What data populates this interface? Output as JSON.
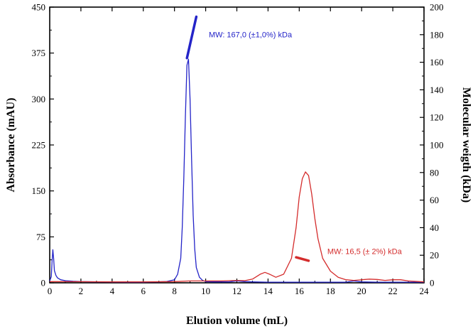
{
  "chart_data": {
    "type": "line",
    "xlabel": "Elution volume (mL)",
    "ylabel": "Absorbance (mAU)",
    "y2label": "Molecular weigth (kDa)",
    "xlim": [
      0,
      24
    ],
    "ylim": [
      0,
      450
    ],
    "y2lim": [
      0,
      200
    ],
    "x_ticks": [
      0,
      2,
      4,
      6,
      8,
      10,
      12,
      14,
      16,
      18,
      20,
      22,
      24
    ],
    "y_ticks": [
      0,
      75,
      150,
      225,
      300,
      375,
      450
    ],
    "y2_ticks": [
      0,
      20,
      40,
      60,
      80,
      100,
      120,
      140,
      160,
      180,
      200
    ],
    "grid": false,
    "colors": {
      "blue": "#2424c8",
      "red": "#d42c2c"
    },
    "series": [
      {
        "color": "#2424c8",
        "axis": "left",
        "x": [
          0,
          0.1,
          0.15,
          0.2,
          0.25,
          0.3,
          0.4,
          0.5,
          0.7,
          1.0,
          1.5,
          2.0,
          3.0,
          4.0,
          5.0,
          6.0,
          7.0,
          7.5,
          8.0,
          8.2,
          8.4,
          8.5,
          8.6,
          8.7,
          8.8,
          8.9,
          9.0,
          9.1,
          9.2,
          9.3,
          9.4,
          9.6,
          9.8,
          10.0,
          10.5,
          11.0,
          11.5,
          12.0,
          12.5,
          13.0,
          14.0,
          15.0,
          16.0,
          17.0,
          18.0,
          19.0,
          19.5,
          20.0,
          21.0,
          22.0,
          23.0,
          24.0
        ],
        "y": [
          3,
          10,
          35,
          54,
          40,
          20,
          12,
          8,
          5,
          3.5,
          2.5,
          2,
          1.5,
          1.2,
          1.1,
          1.1,
          1.5,
          2.2,
          5,
          14,
          40,
          90,
          170,
          270,
          355,
          365,
          300,
          200,
          110,
          55,
          25,
          9,
          4,
          2,
          1.5,
          1.5,
          1.5,
          3,
          2,
          1.5,
          1,
          1,
          1,
          1,
          1,
          1,
          3,
          1.5,
          1,
          1,
          1,
          1
        ]
      },
      {
        "color": "#d42c2c",
        "axis": "left",
        "x": [
          0,
          2,
          4,
          6,
          8,
          9,
          10,
          11,
          12,
          12.5,
          13,
          13.5,
          13.8,
          14.1,
          14.5,
          15.0,
          15.5,
          15.8,
          16.0,
          16.2,
          16.4,
          16.6,
          16.8,
          17.0,
          17.2,
          17.5,
          18.0,
          18.5,
          19.0,
          19.5,
          20.0,
          20.5,
          21.0,
          21.5,
          22.0,
          22.5,
          23.0,
          24.0
        ],
        "y": [
          2,
          1.8,
          1.5,
          1.5,
          2,
          3,
          3,
          3,
          4,
          3.5,
          6,
          14,
          17,
          14,
          9,
          14,
          40,
          90,
          140,
          170,
          181,
          175,
          145,
          105,
          72,
          40,
          19,
          9,
          5,
          4,
          5,
          6,
          5.5,
          4,
          5,
          5,
          3,
          1.5
        ]
      }
    ],
    "mw_fits": [
      {
        "color": "#2424c8",
        "x": [
          8.8,
          9.4
        ],
        "y2": [
          163,
          193
        ]
      },
      {
        "color": "#d42c2c",
        "x": [
          15.8,
          16.6
        ],
        "y2": [
          18.5,
          16.0
        ]
      }
    ],
    "annotations": [
      {
        "text": "MW: 167,0 (±1,0%) kDa",
        "color": "#2424c8",
        "x": 10.2,
        "y2": 178
      },
      {
        "text": "MW: 16,5 (± 2%) kDa",
        "color": "#d42c2c",
        "x": 17.8,
        "y2": 21
      }
    ]
  }
}
